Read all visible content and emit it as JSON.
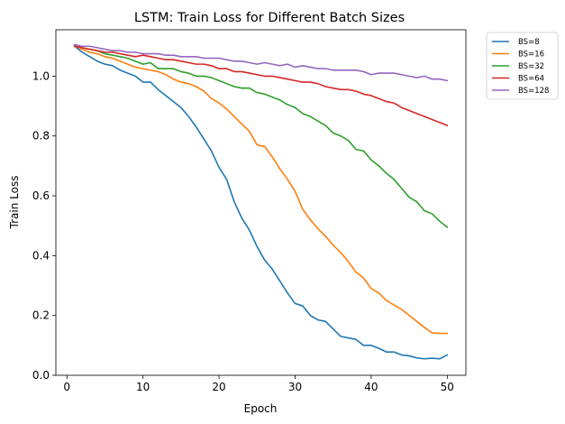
{
  "chart_data": {
    "type": "line",
    "title": "LSTM: Train Loss for Different Batch Sizes",
    "xlabel": "Epoch",
    "ylabel": "Train Loss",
    "xlim": [
      -1.45,
      52.45
    ],
    "ylim": [
      0.0,
      1.155
    ],
    "xticks": [
      0,
      10,
      20,
      30,
      40,
      50
    ],
    "yticks": [
      0.0,
      0.2,
      0.4,
      0.6,
      0.8,
      1.0
    ],
    "ytick_labels": [
      "0.0",
      "0.2",
      "0.4",
      "0.6",
      "0.8",
      "1.0"
    ],
    "grid": false,
    "legend": "outside-top-right",
    "x": [
      1,
      2,
      3,
      4,
      5,
      6,
      7,
      8,
      9,
      10,
      11,
      12,
      13,
      14,
      15,
      16,
      17,
      18,
      19,
      20,
      21,
      22,
      23,
      24,
      25,
      26,
      27,
      28,
      29,
      30,
      31,
      32,
      33,
      34,
      35,
      36,
      37,
      38,
      39,
      40,
      41,
      42,
      43,
      44,
      45,
      46,
      47,
      48,
      49,
      50
    ],
    "series": [
      {
        "name": "BS=8",
        "color": "#1f77b4",
        "values": [
          1.1,
          1.08,
          1.065,
          1.05,
          1.04,
          1.035,
          1.02,
          1.01,
          1.0,
          0.98,
          0.98,
          0.955,
          0.935,
          0.915,
          0.895,
          0.865,
          0.83,
          0.79,
          0.75,
          0.695,
          0.655,
          0.58,
          0.525,
          0.485,
          0.43,
          0.385,
          0.355,
          0.315,
          0.275,
          0.24,
          0.232,
          0.2,
          0.185,
          0.18,
          0.155,
          0.13,
          0.125,
          0.12,
          0.1,
          0.1,
          0.09,
          0.078,
          0.078,
          0.068,
          0.065,
          0.058,
          0.055,
          0.057,
          0.055,
          0.068
        ]
      },
      {
        "name": "BS=16",
        "color": "#ff7f0e",
        "values": [
          1.1,
          1.09,
          1.08,
          1.075,
          1.065,
          1.06,
          1.05,
          1.04,
          1.03,
          1.025,
          1.02,
          1.015,
          1.005,
          0.99,
          0.98,
          0.975,
          0.965,
          0.95,
          0.925,
          0.91,
          0.89,
          0.865,
          0.84,
          0.815,
          0.77,
          0.765,
          0.73,
          0.69,
          0.655,
          0.615,
          0.555,
          0.52,
          0.49,
          0.465,
          0.435,
          0.41,
          0.38,
          0.345,
          0.325,
          0.29,
          0.275,
          0.25,
          0.235,
          0.22,
          0.2,
          0.18,
          0.16,
          0.142,
          0.14,
          0.14
        ]
      },
      {
        "name": "BS=32",
        "color": "#2ca02c",
        "values": [
          1.1,
          1.095,
          1.09,
          1.085,
          1.075,
          1.07,
          1.065,
          1.06,
          1.05,
          1.04,
          1.045,
          1.025,
          1.025,
          1.025,
          1.015,
          1.01,
          1.0,
          1.0,
          0.995,
          0.985,
          0.975,
          0.965,
          0.96,
          0.96,
          0.945,
          0.94,
          0.93,
          0.92,
          0.905,
          0.895,
          0.875,
          0.865,
          0.85,
          0.835,
          0.81,
          0.8,
          0.785,
          0.755,
          0.75,
          0.72,
          0.7,
          0.675,
          0.655,
          0.625,
          0.595,
          0.58,
          0.55,
          0.54,
          0.515,
          0.495
        ]
      },
      {
        "name": "BS=64",
        "color": "#d62728",
        "values": [
          1.1,
          1.095,
          1.09,
          1.085,
          1.08,
          1.08,
          1.075,
          1.07,
          1.065,
          1.07,
          1.065,
          1.06,
          1.055,
          1.055,
          1.05,
          1.045,
          1.04,
          1.04,
          1.035,
          1.025,
          1.025,
          1.015,
          1.015,
          1.01,
          1.005,
          1.0,
          1.0,
          0.995,
          0.99,
          0.985,
          0.98,
          0.98,
          0.975,
          0.965,
          0.96,
          0.955,
          0.955,
          0.95,
          0.94,
          0.935,
          0.925,
          0.915,
          0.91,
          0.895,
          0.885,
          0.875,
          0.865,
          0.855,
          0.845,
          0.835
        ]
      },
      {
        "name": "BS=128",
        "color": "#9467bd",
        "values": [
          1.105,
          1.1,
          1.1,
          1.095,
          1.09,
          1.085,
          1.085,
          1.08,
          1.08,
          1.075,
          1.075,
          1.075,
          1.07,
          1.07,
          1.065,
          1.065,
          1.065,
          1.06,
          1.06,
          1.06,
          1.055,
          1.05,
          1.05,
          1.045,
          1.04,
          1.045,
          1.04,
          1.035,
          1.04,
          1.03,
          1.035,
          1.03,
          1.025,
          1.025,
          1.02,
          1.02,
          1.02,
          1.02,
          1.015,
          1.005,
          1.01,
          1.01,
          1.01,
          1.005,
          1.0,
          0.995,
          1.0,
          0.99,
          0.99,
          0.985
        ]
      }
    ]
  }
}
